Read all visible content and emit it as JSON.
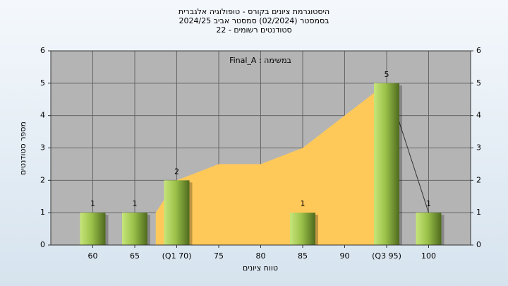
{
  "chart_data": {
    "type": "histogram",
    "title": [
      "היסטוגרמת ציונים בקורס - טופולוגיה אלגברית",
      "בסמסטר  (02/2024)  סמסטר אביב 2024/25",
      "סטודנטים רשומים - 22"
    ],
    "legend_label": "Final_A : במשימה",
    "xlabel": "טווח ציונים",
    "ylabel": "מספר סטודנטים",
    "xlim": [
      55,
      105
    ],
    "ylim": [
      0,
      6
    ],
    "xticks": [
      60,
      65,
      {
        "value": 70,
        "label": "(Q1 70)"
      },
      75,
      80,
      85,
      90,
      {
        "value": 95,
        "label": "(Q3 95)"
      },
      100
    ],
    "yticks": [
      0,
      1,
      2,
      3,
      4,
      5,
      6
    ],
    "grid": true,
    "bars": {
      "x": [
        60,
        65,
        70,
        85,
        95,
        100
      ],
      "values": [
        1,
        1,
        2,
        1,
        5,
        1
      ],
      "color": "#9cc24a"
    },
    "area": {
      "x": [
        67.5,
        70,
        75,
        80,
        85,
        90,
        95
      ],
      "values": [
        1,
        2,
        2.5,
        2.5,
        3,
        4,
        5
      ],
      "color": "#ffc95a"
    },
    "line": {
      "x": [
        95,
        100
      ],
      "values": [
        5,
        1
      ],
      "color": "#333333"
    }
  }
}
